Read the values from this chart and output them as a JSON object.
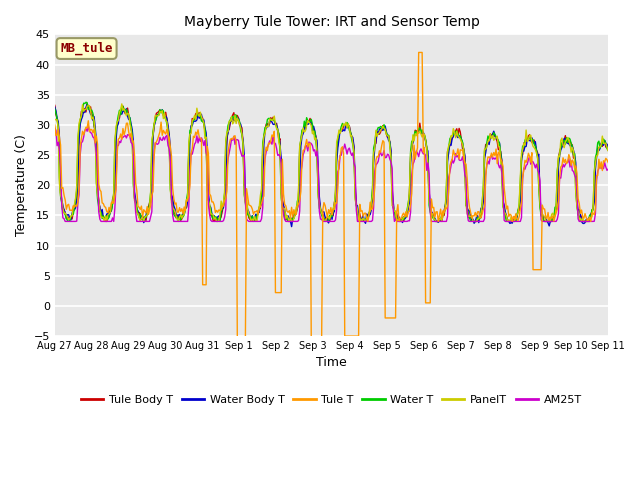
{
  "title": "Mayberry Tule Tower: IRT and Sensor Temp",
  "xlabel": "Time",
  "ylabel": "Temperature (C)",
  "ylim": [
    -5,
    45
  ],
  "yticks": [
    -5,
    0,
    5,
    10,
    15,
    20,
    25,
    30,
    35,
    40,
    45
  ],
  "x_labels": [
    "Aug 27",
    "Aug 28",
    "Aug 29",
    "Aug 30",
    "Aug 31",
    "Sep 1",
    "Sep 2",
    "Sep 3",
    "Sep 4",
    "Sep 5",
    "Sep 6",
    "Sep 7",
    "Sep 8",
    "Sep 9",
    "Sep 10",
    "Sep 11"
  ],
  "series_colors": {
    "Tule Body T": "#cc0000",
    "Water Body T": "#0000cc",
    "Tule T": "#ff9900",
    "Water T": "#00cc00",
    "PanelT": "#cccc00",
    "AM25T": "#cc00cc"
  },
  "legend_labels": [
    "Tule Body T",
    "Water Body T",
    "Tule T",
    "Water T",
    "PanelT",
    "AM25T"
  ],
  "watermark_text": "MB_tule",
  "plot_bg_color": "#e8e8e8",
  "grid_color": "white",
  "n_points": 480
}
